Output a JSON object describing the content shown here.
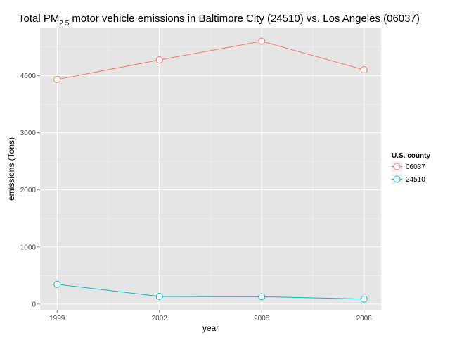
{
  "chart_data": {
    "type": "line",
    "title": {
      "before": "Total PM",
      "subscript": "2.5",
      "after": " motor vehicle emissions in Baltimore City (24510) vs. Los Angeles (06037)"
    },
    "xlabel": "year",
    "ylabel": "emissions (Tons)",
    "x": [
      1999,
      2002,
      2005,
      2008
    ],
    "x_ticks": [
      "1999",
      "2002",
      "2005",
      "2008"
    ],
    "xlim": [
      1998.5,
      2008.5
    ],
    "ylim": [
      -100,
      4830
    ],
    "y_ticks": [
      0,
      1000,
      2000,
      3000,
      4000
    ],
    "y_tick_labels": [
      "0",
      "1000",
      "2000",
      "3000",
      "4000"
    ],
    "grid": true,
    "legend": {
      "title": "U.S. county",
      "position": "right"
    },
    "series": [
      {
        "name": "06037",
        "color": "#F8766D",
        "values": [
          3931,
          4274,
          4601,
          4101
        ]
      },
      {
        "name": "24510",
        "color": "#00BFC4",
        "values": [
          347,
          134,
          130,
          88
        ]
      }
    ]
  }
}
